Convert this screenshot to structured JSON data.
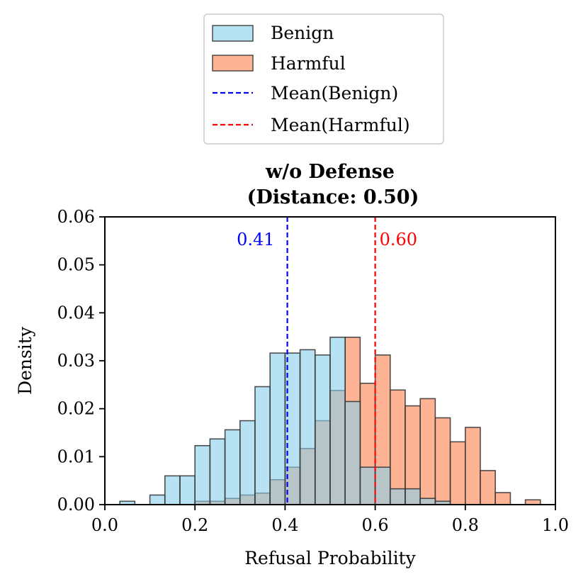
{
  "chart_data": {
    "type": "bar",
    "title": "w/o Defense",
    "subtitle": "(Distance: 0.50)",
    "xlabel": "Refusal Probability",
    "ylabel": "Density",
    "xlim": [
      0.0,
      1.0
    ],
    "ylim": [
      0.0,
      0.06
    ],
    "xticks": [
      0.0,
      0.2,
      0.4,
      0.6,
      0.8,
      1.0
    ],
    "xtick_labels": [
      "0.0",
      "0.2",
      "0.4",
      "0.6",
      "0.8",
      "1.0"
    ],
    "yticks": [
      0.0,
      0.01,
      0.02,
      0.03,
      0.04,
      0.05,
      0.06
    ],
    "ytick_labels": [
      "0.00",
      "0.01",
      "0.02",
      "0.03",
      "0.04",
      "0.05",
      "0.06"
    ],
    "legend_position": "above",
    "series": [
      {
        "name": "Benign",
        "color": "#87ceeb",
        "bin_width": 0.0333,
        "bin_starts": [
          0.0333,
          0.1,
          0.1333,
          0.1667,
          0.2,
          0.2333,
          0.2667,
          0.3,
          0.3333,
          0.3667,
          0.4,
          0.4333,
          0.4667,
          0.5,
          0.5333,
          0.5667,
          0.6,
          0.6333,
          0.6667,
          0.7,
          0.7333
        ],
        "values": [
          0.0007,
          0.002,
          0.006,
          0.006,
          0.0123,
          0.0137,
          0.0156,
          0.0175,
          0.0246,
          0.0316,
          0.0316,
          0.0323,
          0.0312,
          0.0349,
          0.0215,
          0.0078,
          0.0078,
          0.0033,
          0.0033,
          0.0013,
          0.0007
        ]
      },
      {
        "name": "Harmful",
        "color": "#ffa07a",
        "bin_width": 0.0333,
        "bin_starts": [
          0.2,
          0.2333,
          0.2667,
          0.3,
          0.3333,
          0.3667,
          0.4,
          0.4333,
          0.4667,
          0.5,
          0.5333,
          0.5667,
          0.6,
          0.6333,
          0.6667,
          0.7,
          0.7333,
          0.7667,
          0.8,
          0.8333,
          0.8667,
          0.9333
        ],
        "values": [
          0.0007,
          0.0007,
          0.0013,
          0.002,
          0.0024,
          0.0052,
          0.0078,
          0.0117,
          0.0175,
          0.0238,
          0.0349,
          0.0253,
          0.0312,
          0.0239,
          0.0206,
          0.0221,
          0.0181,
          0.0131,
          0.0161,
          0.0071,
          0.0025,
          0.001
        ]
      }
    ],
    "mean_lines": [
      {
        "name": "Mean(Benign)",
        "value": 0.405,
        "label": "0.41",
        "color": "#0000ff"
      },
      {
        "name": "Mean(Harmful)",
        "value": 0.6,
        "label": "0.60",
        "color": "#ff0000"
      }
    ],
    "legend": [
      {
        "label": "Benign",
        "kind": "patch",
        "color": "#87ceeb"
      },
      {
        "label": "Harmful",
        "kind": "patch",
        "color": "#ffa07a"
      },
      {
        "label": "Mean(Benign)",
        "kind": "line",
        "color": "#0000ff"
      },
      {
        "label": "Mean(Harmful)",
        "kind": "line",
        "color": "#ff0000"
      }
    ]
  }
}
